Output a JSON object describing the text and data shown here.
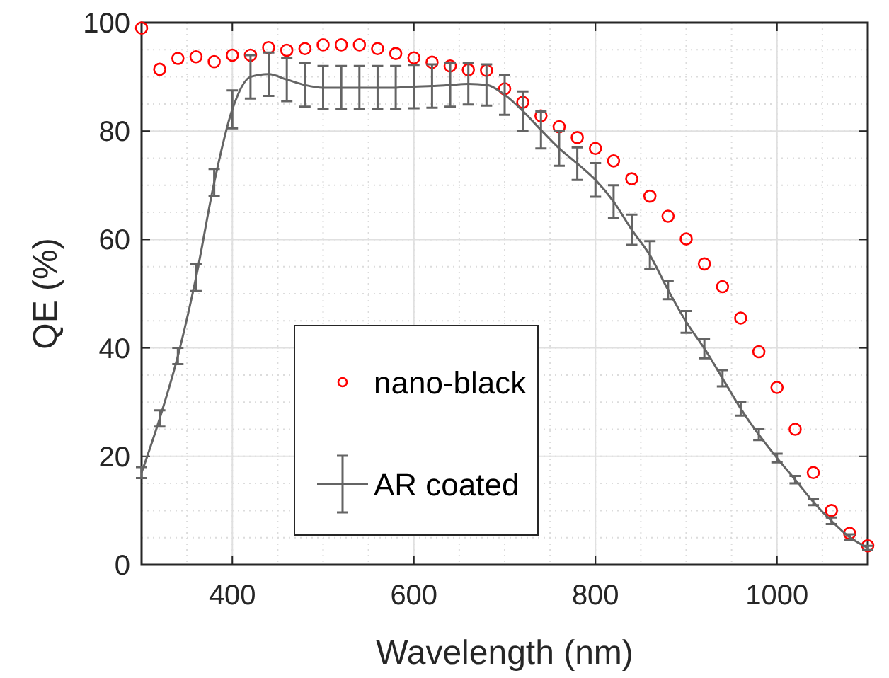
{
  "chart_data": {
    "type": "scatter",
    "xlabel": "Wavelength (nm)",
    "ylabel": "QE (%)",
    "x": [
      300,
      320,
      340,
      360,
      380,
      400,
      420,
      440,
      460,
      480,
      500,
      520,
      540,
      560,
      580,
      600,
      620,
      640,
      660,
      680,
      700,
      720,
      740,
      760,
      780,
      800,
      820,
      840,
      860,
      880,
      900,
      920,
      940,
      960,
      980,
      1000,
      1020,
      1040,
      1060,
      1080,
      1100
    ],
    "series": [
      {
        "name": "nano-black",
        "marker": "circle",
        "color": "#ff0000",
        "values": [
          99,
          91.4,
          93.4,
          93.7,
          92.8,
          94,
          94,
          95.4,
          94.9,
          95.2,
          95.9,
          95.9,
          95.9,
          95.2,
          94.3,
          93.5,
          92.7,
          92,
          91.3,
          91.2,
          87.8,
          85.3,
          82.8,
          80.8,
          78.8,
          76.8,
          74.5,
          71.2,
          68,
          64.3,
          60.1,
          55.5,
          51.3,
          45.5,
          39.3,
          32.7,
          25,
          17,
          10,
          5.8,
          3.5
        ]
      },
      {
        "name": "AR coated",
        "type": "line",
        "marker": "none",
        "line_style": "solid",
        "color": "#646464",
        "values": [
          17,
          27,
          38.5,
          53,
          70.5,
          84,
          90,
          90.5,
          89.5,
          88.5,
          88,
          88,
          88,
          88,
          88,
          88.2,
          88.3,
          88.5,
          88.7,
          88.5,
          86.7,
          83.7,
          80.2,
          76.8,
          74,
          71,
          67,
          61.8,
          57.1,
          50.7,
          44.8,
          39.9,
          34.4,
          28.8,
          24,
          19.7,
          15.7,
          11.6,
          8.1,
          5.1,
          3.1
        ],
        "errors": [
          1,
          1.5,
          1.5,
          2.5,
          2.5,
          3.5,
          4,
          4,
          4,
          4,
          4,
          4,
          4,
          4,
          4,
          4,
          4,
          4,
          3.8,
          3.8,
          3.7,
          3.6,
          3.4,
          3.2,
          3,
          3.1,
          3,
          2.8,
          2.6,
          1.7,
          2,
          1.8,
          1.5,
          1.3,
          1,
          0.8,
          0.7,
          0.6,
          0.6,
          0.5,
          0.4
        ]
      }
    ],
    "xlim": [
      300,
      1100
    ],
    "xticks": [
      400,
      600,
      800,
      1000
    ],
    "ylim": [
      0,
      100
    ],
    "yticks": [
      0,
      20,
      40,
      60,
      80,
      100
    ],
    "grid": true,
    "legend": "bottom"
  }
}
